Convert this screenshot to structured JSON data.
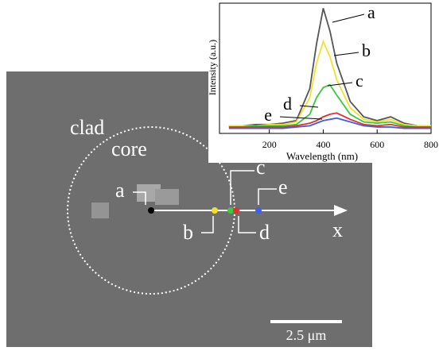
{
  "chart_data": {
    "type": "line",
    "x_label": "Wavelength (nm)",
    "y_label": "Intensity (a.u.)",
    "x": [
      50,
      100,
      150,
      200,
      250,
      300,
      350,
      375,
      400,
      425,
      450,
      500,
      550,
      600,
      650,
      700,
      750,
      800
    ],
    "series": [
      {
        "name": "a",
        "color": "#555555",
        "values": [
          0.06,
          0.06,
          0.07,
          0.07,
          0.08,
          0.1,
          0.35,
          0.7,
          0.98,
          0.8,
          0.55,
          0.25,
          0.13,
          0.1,
          0.13,
          0.08,
          0.06,
          0.06
        ]
      },
      {
        "name": "b",
        "color": "#f2e030",
        "values": [
          0.06,
          0.06,
          0.06,
          0.07,
          0.07,
          0.09,
          0.28,
          0.55,
          0.72,
          0.6,
          0.42,
          0.2,
          0.11,
          0.09,
          0.11,
          0.07,
          0.06,
          0.06
        ]
      },
      {
        "name": "c",
        "color": "#3ec63e",
        "values": [
          0.05,
          0.05,
          0.06,
          0.06,
          0.06,
          0.07,
          0.15,
          0.28,
          0.36,
          0.38,
          0.3,
          0.15,
          0.09,
          0.08,
          0.09,
          0.06,
          0.05,
          0.05
        ]
      },
      {
        "name": "d",
        "color": "#e03030",
        "values": [
          0.05,
          0.05,
          0.05,
          0.05,
          0.05,
          0.06,
          0.08,
          0.1,
          0.13,
          0.15,
          0.16,
          0.11,
          0.07,
          0.06,
          0.07,
          0.05,
          0.05,
          0.05
        ]
      },
      {
        "name": "e",
        "color": "#4060e0",
        "values": [
          0.04,
          0.04,
          0.04,
          0.04,
          0.04,
          0.05,
          0.06,
          0.08,
          0.1,
          0.11,
          0.12,
          0.09,
          0.06,
          0.05,
          0.05,
          0.04,
          0.04,
          0.04
        ]
      }
    ],
    "xlim": [
      15,
      800
    ],
    "xticks": [
      200,
      400,
      600,
      800
    ],
    "ylim": [
      0,
      1.02
    ]
  },
  "image": {
    "clad": "clad",
    "core": "core",
    "points": [
      "a",
      "b",
      "c",
      "d",
      "e"
    ],
    "axis": "x",
    "scale_bar": "2.5 μm"
  }
}
